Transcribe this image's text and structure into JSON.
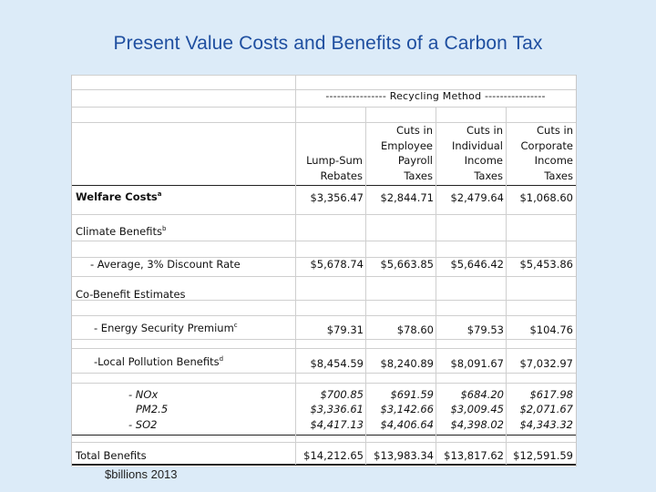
{
  "title": "Present Value Costs and Benefits of a Carbon Tax",
  "footnote": "$billions 2013",
  "table": {
    "group_header": "---------------- Recycling Method ----------------",
    "columns": [
      [
        "Lump-Sum",
        "Rebates"
      ],
      [
        "Cuts in",
        "Employee",
        "Payroll",
        "Taxes"
      ],
      [
        "Cuts in",
        "Individual",
        "Income",
        "Taxes"
      ],
      [
        "Cuts in",
        "Corporate",
        "Income",
        "Taxes"
      ]
    ],
    "rows": {
      "welfare": {
        "label": "Welfare Costs",
        "sup": "a",
        "values": [
          "$3,356.47",
          "$2,844.71",
          "$2,479.64",
          "$1,068.60"
        ]
      },
      "climate": {
        "label": "Climate Benefits",
        "sup": "b"
      },
      "average": {
        "label": "- Average, 3% Discount Rate",
        "values": [
          "$5,678.74",
          "$5,663.85",
          "$5,646.42",
          "$5,453.86"
        ]
      },
      "cobenefit": {
        "label": "Co-Benefit Estimates"
      },
      "energy": {
        "label": "- Energy Security Premium",
        "sup": "c",
        "values": [
          "$79.31",
          "$78.60",
          "$79.53",
          "$104.76"
        ]
      },
      "local": {
        "label": "-Local Pollution Benefits",
        "sup": "d",
        "values": [
          "$8,454.59",
          "$8,240.89",
          "$8,091.67",
          "$7,032.97"
        ]
      },
      "nox": {
        "label": "- NOx",
        "values": [
          "$700.85",
          "$691.59",
          "$684.20",
          "$617.98"
        ]
      },
      "pm25": {
        "label": "PM2.5",
        "values": [
          "$3,336.61",
          "$3,142.66",
          "$3,009.45",
          "$2,071.67"
        ]
      },
      "so2": {
        "label": "- SO2",
        "values": [
          "$4,417.13",
          "$4,406.64",
          "$4,398.02",
          "$4,343.32"
        ]
      },
      "total": {
        "label": "Total Benefits",
        "values": [
          "$14,212.65",
          "$13,983.34",
          "$13,817.62",
          "$12,591.59"
        ]
      }
    }
  }
}
